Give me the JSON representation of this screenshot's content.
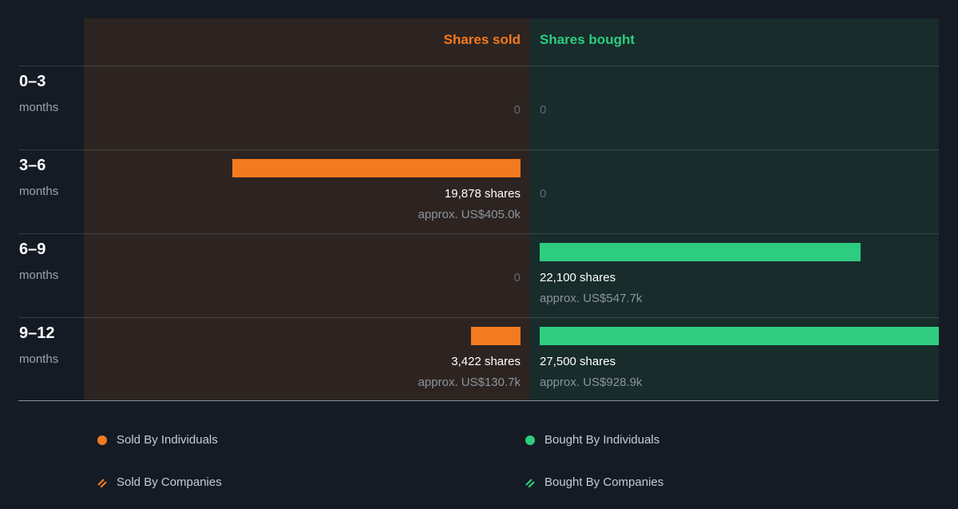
{
  "colors": {
    "sold": "#f47a1f",
    "bought": "#2ecc7f",
    "background": "#151b24",
    "sold_panel": "#2d2421",
    "bought_panel": "#172c2b"
  },
  "chart_data": {
    "type": "bar",
    "orientation": "horizontal-diverging",
    "columns": {
      "sold_label": "Shares sold",
      "bought_label": "Shares bought"
    },
    "categories": [
      {
        "range": "0–3",
        "unit": "months"
      },
      {
        "range": "3–6",
        "unit": "months"
      },
      {
        "range": "6–9",
        "unit": "months"
      },
      {
        "range": "9–12",
        "unit": "months"
      }
    ],
    "series": [
      {
        "name": "Shares sold",
        "values": [
          0,
          19878,
          0,
          3422
        ],
        "labels": [
          "0",
          "19,878 shares",
          "0",
          "3,422 shares"
        ],
        "approx": [
          "",
          "approx. US$405.0k",
          "",
          "approx. US$130.7k"
        ]
      },
      {
        "name": "Shares bought",
        "values": [
          0,
          0,
          22100,
          27500
        ],
        "labels": [
          "0",
          "0",
          "22,100 shares",
          "27,500 shares"
        ],
        "approx": [
          "",
          "",
          "approx. US$547.7k",
          "approx. US$928.9k"
        ]
      }
    ],
    "legend": [
      {
        "label": "Sold By Individuals",
        "icon": "solid-dot",
        "color": "#f47a1f"
      },
      {
        "label": "Bought By Individuals",
        "icon": "solid-dot",
        "color": "#2ecc7f"
      },
      {
        "label": "Sold By Companies",
        "icon": "hatched-dot",
        "color": "#f47a1f"
      },
      {
        "label": "Bought By Companies",
        "icon": "hatched-dot",
        "color": "#2ecc7f"
      }
    ],
    "legend_placement": "bottom"
  }
}
